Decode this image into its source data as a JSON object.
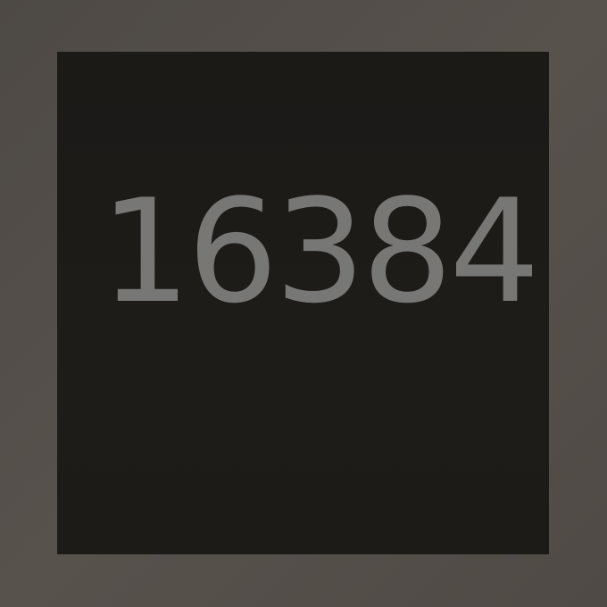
{
  "game": {
    "tile": {
      "value": "16384"
    }
  },
  "colors": {
    "background": "#524d48",
    "tile_background": "#1d1c19",
    "tile_text": "#777776"
  }
}
